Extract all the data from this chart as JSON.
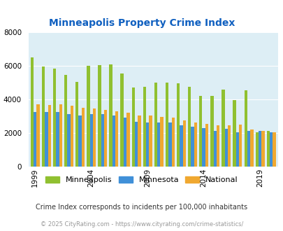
{
  "title": "Minneapolis Property Crime Index",
  "title_color": "#1060c0",
  "years": [
    1999,
    2000,
    2001,
    2002,
    2003,
    2004,
    2005,
    2006,
    2007,
    2008,
    2009,
    2010,
    2011,
    2012,
    2013,
    2014,
    2015,
    2016,
    2017,
    2018,
    2019,
    2020
  ],
  "minneapolis": [
    6500,
    5950,
    5850,
    5450,
    5050,
    6000,
    6050,
    6100,
    5550,
    4700,
    4750,
    5000,
    5000,
    4950,
    4750,
    4200,
    4200,
    4600,
    3950,
    4550,
    2050,
    2100
  ],
  "minnesota": [
    3250,
    3250,
    3250,
    3100,
    3050,
    3100,
    3100,
    3050,
    2900,
    2650,
    2600,
    2600,
    2600,
    2450,
    2350,
    2300,
    2100,
    2250,
    2050,
    2100,
    2100,
    2050
  ],
  "national": [
    3700,
    3650,
    3700,
    3600,
    3500,
    3450,
    3350,
    3300,
    3200,
    3050,
    3050,
    2950,
    2900,
    2750,
    2600,
    2550,
    2450,
    2450,
    2500,
    2200,
    2100,
    2050
  ],
  "minneapolis_color": "#90c030",
  "minnesota_color": "#4090d8",
  "national_color": "#f0a830",
  "bg_color": "#ddeef5",
  "ylim": [
    0,
    8000
  ],
  "yticks": [
    0,
    2000,
    4000,
    6000,
    8000
  ],
  "xtick_positions": [
    1999,
    2004,
    2009,
    2014,
    2019
  ],
  "footnote1": "Crime Index corresponds to incidents per 100,000 inhabitants",
  "footnote2": "© 2025 CityRating.com - https://www.cityrating.com/crime-statistics/",
  "bar_width": 0.27,
  "xlim_left": 1998.4,
  "xlim_right": 2020.6
}
